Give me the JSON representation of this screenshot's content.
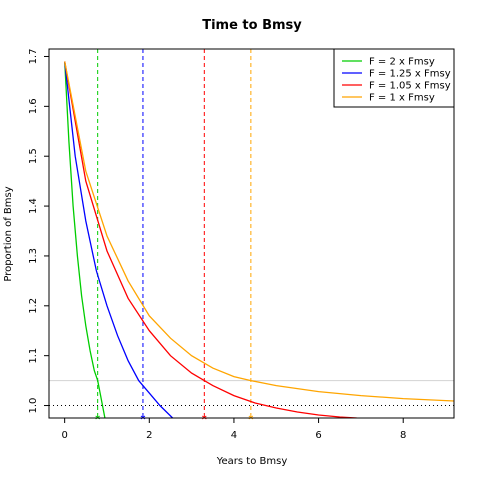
{
  "chart_data": {
    "type": "line",
    "title": "Time to Bmsy",
    "xlabel": "Years to Bmsy",
    "ylabel": "Proportion of Bmsy",
    "xlim": [
      -0.37,
      9.2
    ],
    "ylim": [
      0.975,
      1.715
    ],
    "x_ticks": [
      0,
      2,
      4,
      6,
      8
    ],
    "y_ticks": [
      1.0,
      1.1,
      1.2,
      1.3,
      1.4,
      1.5,
      1.6,
      1.7
    ],
    "y_tick_labels": [
      "1.0",
      "1.1",
      "1.2",
      "1.3",
      "1.4",
      "1.5",
      "1.6",
      "1.7"
    ],
    "legend_position": "top-right",
    "series": [
      {
        "name": "F = 2 x Fmsy",
        "color": "#00CD00",
        "x": [
          0,
          0.1,
          0.2,
          0.3,
          0.4,
          0.5,
          0.6,
          0.7,
          0.78,
          0.85,
          0.95
        ],
        "y": [
          1.69,
          1.53,
          1.4,
          1.3,
          1.22,
          1.16,
          1.11,
          1.07,
          1.05,
          1.02,
          0.975
        ],
        "vline": 0.78
      },
      {
        "name": "F = 1.25 x Fmsy",
        "color": "#0000FF",
        "x": [
          0,
          0.25,
          0.5,
          0.75,
          1.0,
          1.25,
          1.5,
          1.75,
          1.85,
          2.0,
          2.25,
          2.55
        ],
        "y": [
          1.69,
          1.5,
          1.37,
          1.27,
          1.2,
          1.14,
          1.09,
          1.05,
          1.04,
          1.025,
          1.0,
          0.975
        ],
        "vline": 1.85
      },
      {
        "name": "F = 1.05 x Fmsy",
        "color": "#FF0000",
        "x": [
          0,
          0.5,
          1.0,
          1.5,
          2.0,
          2.5,
          3.0,
          3.3,
          3.5,
          4.0,
          4.5,
          5.0,
          5.5,
          6.0,
          6.5,
          6.9
        ],
        "y": [
          1.69,
          1.45,
          1.31,
          1.215,
          1.15,
          1.1,
          1.065,
          1.05,
          1.04,
          1.02,
          1.005,
          0.995,
          0.987,
          0.981,
          0.977,
          0.975
        ],
        "vline": 3.3
      },
      {
        "name": "F = 1 x Fmsy",
        "color": "#FFA500",
        "x": [
          0,
          0.5,
          1.0,
          1.5,
          2.0,
          2.5,
          3.0,
          3.5,
          4.0,
          4.4,
          5.0,
          6.0,
          7.0,
          8.0,
          9.2
        ],
        "y": [
          1.69,
          1.47,
          1.34,
          1.25,
          1.18,
          1.135,
          1.1,
          1.075,
          1.058,
          1.05,
          1.04,
          1.028,
          1.02,
          1.014,
          1.009
        ],
        "vline": 4.4
      }
    ],
    "reference_lines": [
      {
        "type": "horizontal",
        "y": 1.0,
        "style": "dotted",
        "color": "#000000"
      },
      {
        "type": "horizontal",
        "y": 1.05,
        "style": "solid",
        "color": "#d3d3d3"
      }
    ]
  }
}
